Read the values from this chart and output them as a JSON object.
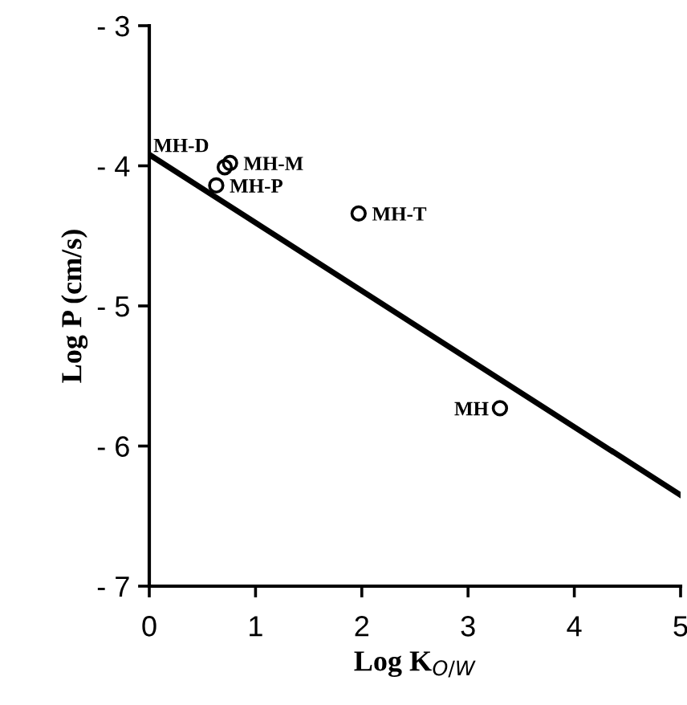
{
  "chart_data": {
    "type": "scatter",
    "xlabel": "Log K$_{O/W}$",
    "ylabel": "Log P (cm/s)",
    "xlim": [
      0,
      5
    ],
    "ylim": [
      -7,
      -3
    ],
    "xticks": [
      0,
      1,
      2,
      3,
      4,
      5
    ],
    "yticks": [
      {
        "value": -7,
        "label": "- 7"
      },
      {
        "value": -6,
        "label": "- 6"
      },
      {
        "value": -5,
        "label": "- 5"
      },
      {
        "value": -4,
        "label": "- 4"
      },
      {
        "value": -3,
        "label": "- 3"
      }
    ],
    "grid": false,
    "legend": false,
    "marker": "circle",
    "series": [
      {
        "color": "#000000",
        "x": [
          0.71,
          0.76,
          0.63,
          1.97,
          3.3
        ],
        "values": [
          -4.01,
          -3.98,
          -4.14,
          -4.34,
          -5.73
        ]
      },
      {
        "type": "line",
        "color": "#000000",
        "x": [
          0,
          5
        ],
        "values": [
          -3.92,
          -6.35
        ],
        "marker": "none",
        "line_style": "solid"
      }
    ],
    "annotations": [
      {
        "text": "MH-D",
        "x": 0.71,
        "y": -4.01
      },
      {
        "text": "MH-M",
        "x": 0.76,
        "y": -3.98
      },
      {
        "text": "MH-P",
        "x": 0.63,
        "y": -4.14
      },
      {
        "text": "MH-T",
        "x": 1.97,
        "y": -4.34
      },
      {
        "text": "MH",
        "x": 3.3,
        "y": -5.73
      }
    ]
  }
}
